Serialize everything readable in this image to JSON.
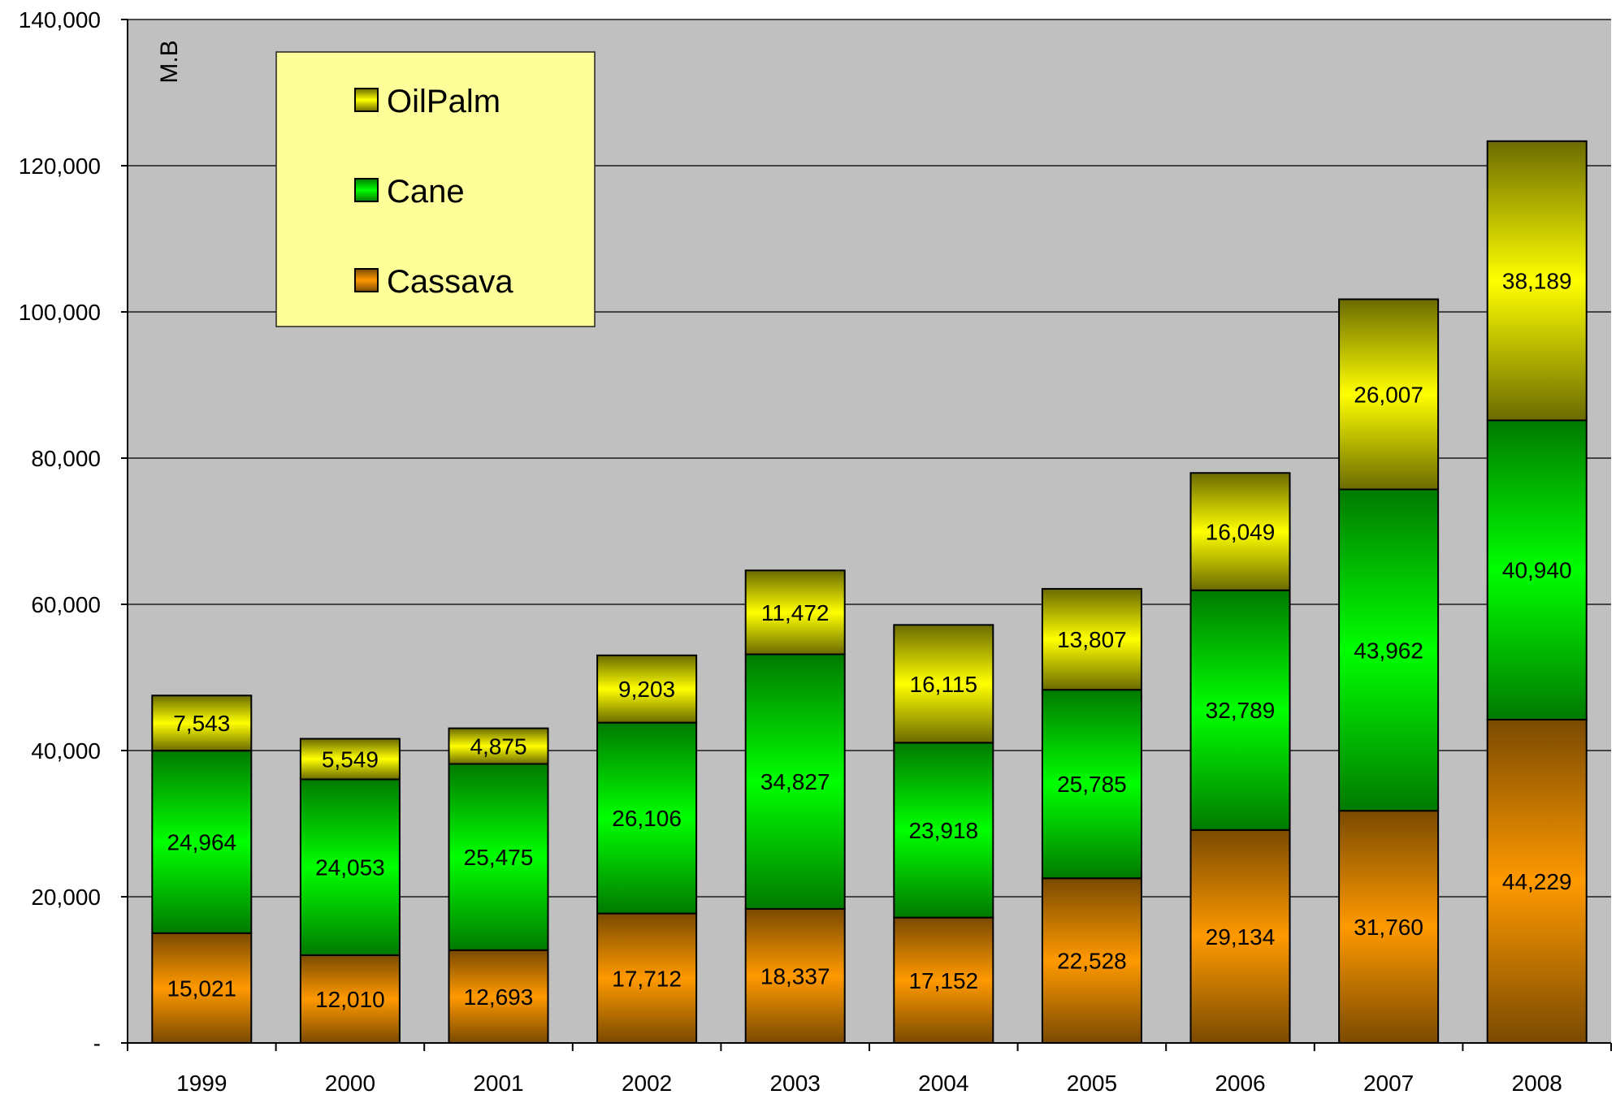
{
  "chart_data": {
    "type": "bar",
    "stacked": true,
    "categories": [
      "1999",
      "2000",
      "2001",
      "2002",
      "2003",
      "2004",
      "2005",
      "2006",
      "2007",
      "2008"
    ],
    "series": [
      {
        "name": "Cassava",
        "values": [
          15021,
          12010,
          12693,
          17712,
          18337,
          17152,
          22528,
          29134,
          31760,
          44229
        ],
        "labels": [
          "15,021",
          "12,010",
          "12,693",
          "17,712",
          "18,337",
          "17,152",
          "22,528",
          "29,134",
          "31,760",
          "44,229"
        ]
      },
      {
        "name": "Cane",
        "values": [
          24964,
          24053,
          25475,
          26106,
          34827,
          23918,
          25785,
          32789,
          43962,
          40940
        ],
        "labels": [
          "24,964",
          "24,053",
          "25,475",
          "26,106",
          "34,827",
          "23,918",
          "25,785",
          "32,789",
          "43,962",
          "40,940"
        ]
      },
      {
        "name": "OilPalm",
        "values": [
          7543,
          5549,
          4875,
          9203,
          11472,
          16115,
          13807,
          16049,
          26007,
          38189
        ],
        "labels": [
          "7,543",
          "5,549",
          "4,875",
          "9,203",
          "11,472",
          "16,115",
          "13,807",
          "16,049",
          "26,007",
          "38,189"
        ]
      }
    ],
    "ylabel": "M.B",
    "ylim": [
      0,
      140000
    ],
    "yticks": [
      "-",
      "20,000",
      "40,000",
      "60,000",
      "80,000",
      "100,000",
      "120,000",
      "140,000"
    ],
    "grid": true,
    "legend": {
      "position": "top-left",
      "order": [
        "OilPalm",
        "Cane",
        "Cassava"
      ]
    },
    "colors": {
      "plot_background": "#c0c0c0",
      "legend_background": "#ffff99",
      "gridline": "#1a1a1a",
      "Cassava": {
        "dark": "#7a4a00",
        "light": "#ff9900"
      },
      "Cane": {
        "dark": "#007a00",
        "light": "#00ff00"
      },
      "OilPalm": {
        "dark": "#6b6b00",
        "light": "#ffff00"
      }
    }
  }
}
